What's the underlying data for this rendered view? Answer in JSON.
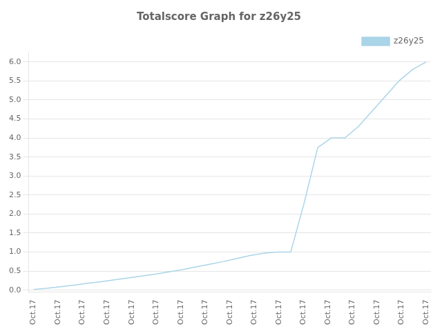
{
  "chart_data": {
    "type": "line",
    "title": "Totalscore Graph for z26y25",
    "series": [
      {
        "name": "z26y25",
        "color": "#aad4e8",
        "x": [
          0,
          0.5517241379,
          1.1034482759,
          1.6551724138,
          2.2068965517,
          2.7586206897,
          3.3103448276,
          3.8620689655,
          4.4137931034,
          4.9655172414,
          5.5172413793,
          6.0689655172,
          6.6206896552,
          7.1724137931,
          7.724137931,
          8.275862069,
          8.8275862069,
          9.3793103448,
          9.9310344828,
          10.4827586207,
          11.0344827586,
          11.5862068966,
          12.1379310345,
          12.6896551724,
          13.2413793103,
          13.7931034483,
          14.3448275862,
          14.8965517241,
          15.4482758621,
          16
        ],
        "values": [
          0.02,
          0.05,
          0.09,
          0.13,
          0.18,
          0.22,
          0.27,
          0.32,
          0.37,
          0.42,
          0.48,
          0.54,
          0.61,
          0.68,
          0.75,
          0.83,
          0.91,
          0.97,
          1.0,
          1.0,
          2.3,
          3.75,
          4.0,
          4.0,
          4.3,
          4.7,
          5.1,
          5.5,
          5.8,
          6.0
        ]
      }
    ],
    "xlim": [
      -0.2,
      16.2
    ],
    "xticks": [
      {
        "value": 0,
        "label": "Oct.17"
      },
      {
        "value": 1,
        "label": "Oct.17"
      },
      {
        "value": 2,
        "label": "Oct.17"
      },
      {
        "value": 3,
        "label": "Oct.17"
      },
      {
        "value": 4,
        "label": "Oct.17"
      },
      {
        "value": 5,
        "label": "Oct.17"
      },
      {
        "value": 6,
        "label": "Oct.17"
      },
      {
        "value": 7,
        "label": "Oct.17"
      },
      {
        "value": 8,
        "label": "Oct.17"
      },
      {
        "value": 9,
        "label": "Oct.17"
      },
      {
        "value": 10,
        "label": "Oct.17"
      },
      {
        "value": 11,
        "label": "Oct.17"
      },
      {
        "value": 12,
        "label": "Oct.17"
      },
      {
        "value": 13,
        "label": "Oct.17"
      },
      {
        "value": 14,
        "label": "Oct.17"
      },
      {
        "value": 15,
        "label": "Oct.17"
      },
      {
        "value": 16,
        "label": "Oct.17"
      }
    ],
    "ylim": [
      -0.05,
      6.25
    ],
    "yticks": [
      {
        "value": 0,
        "label": "0.0"
      },
      {
        "value": 0.5,
        "label": "0.5"
      },
      {
        "value": 1,
        "label": "1.0"
      },
      {
        "value": 1.5,
        "label": "1.5"
      },
      {
        "value": 2,
        "label": "2.0"
      },
      {
        "value": 2.5,
        "label": "2.5"
      },
      {
        "value": 3,
        "label": "3.0"
      },
      {
        "value": 3.5,
        "label": "3.5"
      },
      {
        "value": 4,
        "label": "4.0"
      },
      {
        "value": 4.5,
        "label": "4.5"
      },
      {
        "value": 5,
        "label": "5.0"
      },
      {
        "value": 5.5,
        "label": "5.5"
      },
      {
        "value": 6,
        "label": "6.0"
      }
    ],
    "grid": "y",
    "legend": "upper right"
  }
}
